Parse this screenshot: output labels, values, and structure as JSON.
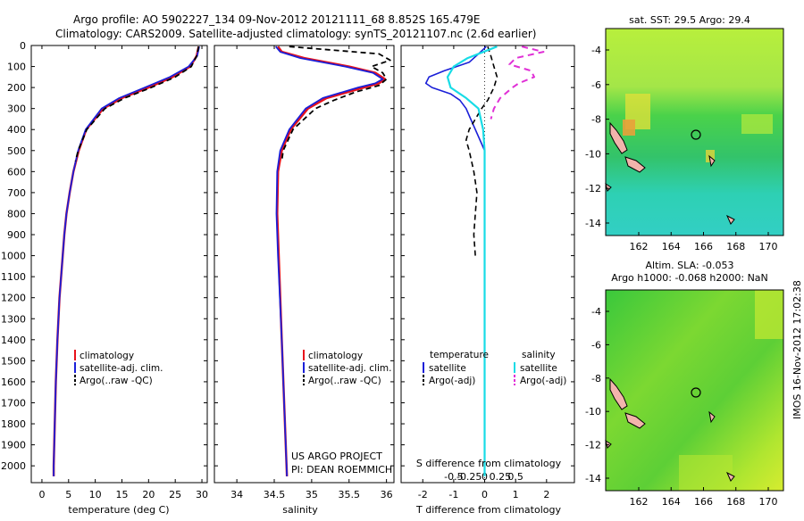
{
  "header": {
    "line1": "Argo profile: AO 5902227_134 09-Nov-2012 20121111_68 8.852S 165.479E",
    "line2": "Climatology: CARS2009. Satellite-adjusted climatology: synTS_20121107.nc (2.6d earlier)"
  },
  "side_stamp": "IMOS 16-Nov-2012 17:02:38",
  "colors": {
    "climatology": "#e8121b",
    "satellite": "#1a1fd8",
    "argo": "#000000",
    "satellite_s": "#17dce6",
    "argo_s": "#e030d6"
  },
  "chart_data": [
    {
      "type": "line",
      "id": "temperature",
      "xlabel": "temperature (deg C)",
      "ylabel": "",
      "xlim": [
        -2,
        31
      ],
      "ylim": [
        2080,
        0
      ],
      "xticks": [
        0,
        5,
        10,
        15,
        20,
        25,
        30
      ],
      "xtick_labels": [
        "0",
        "5",
        "10",
        "15",
        "20",
        "25",
        "30"
      ],
      "yticks": [
        0,
        100,
        200,
        300,
        400,
        500,
        600,
        700,
        800,
        900,
        1000,
        1100,
        1200,
        1300,
        1400,
        1500,
        1600,
        1700,
        1800,
        1900,
        2000
      ],
      "ytick_labels": [
        "0",
        "100",
        "200",
        "300",
        "400",
        "500",
        "600",
        "700",
        "800",
        "900",
        "1000",
        "1100",
        "1200",
        "1300",
        "1400",
        "1500",
        "1600",
        "1700",
        "1800",
        "1900",
        "2000"
      ],
      "legend": {
        "position": "lower-center",
        "entries": [
          "climatology",
          "satellite-adj. clim.",
          "Argo(..raw -QC)"
        ]
      },
      "series": [
        {
          "name": "climatology",
          "color": "#e8121b",
          "width": 2.5,
          "dash": "",
          "depth": [
            5,
            50,
            100,
            150,
            200,
            250,
            300,
            400,
            500,
            600,
            700,
            800,
            900,
            1000,
            1200,
            1400,
            1600,
            1800,
            2000,
            2050
          ],
          "values": [
            29.4,
            29.0,
            27.8,
            24.5,
            20.0,
            15.0,
            11.5,
            8.3,
            6.9,
            5.9,
            5.2,
            4.6,
            4.2,
            3.9,
            3.3,
            2.9,
            2.6,
            2.4,
            2.2,
            2.2
          ]
        },
        {
          "name": "satellite-adj. clim.",
          "color": "#1a1fd8",
          "width": 1.8,
          "dash": "",
          "depth": [
            5,
            50,
            100,
            150,
            200,
            250,
            300,
            400,
            500,
            600,
            700,
            800,
            900,
            1000,
            1200,
            1400,
            1600,
            1800,
            2000,
            2050
          ],
          "values": [
            29.5,
            29.1,
            27.5,
            24.0,
            19.3,
            14.5,
            11.2,
            8.2,
            6.8,
            5.9,
            5.2,
            4.6,
            4.2,
            3.9,
            3.3,
            2.9,
            2.6,
            2.4,
            2.2,
            2.2
          ]
        },
        {
          "name": "Argo(..raw -QC)",
          "color": "#000000",
          "width": 1.8,
          "dash": "6,4",
          "depth": [
            5,
            50,
            100,
            150,
            200,
            250,
            300,
            400,
            500,
            550
          ],
          "values": [
            29.4,
            29.0,
            28.0,
            25.0,
            20.5,
            15.5,
            11.8,
            8.4,
            6.8,
            6.3
          ]
        }
      ]
    },
    {
      "type": "line",
      "id": "salinity",
      "xlabel": "salinity",
      "ylabel": "",
      "xlim": [
        33.7,
        36.1
      ],
      "ylim": [
        2080,
        0
      ],
      "xticks": [
        34,
        34.5,
        35,
        35.5,
        36
      ],
      "xtick_labels": [
        "34",
        "34.5",
        "35",
        "35.5",
        "36"
      ],
      "legend": {
        "position": "lower-center",
        "entries": [
          "climatology",
          "satellite-adj. clim.",
          "Argo(..raw -QC)"
        ]
      },
      "annotation": [
        "US ARGO PROJECT",
        "PI: DEAN ROEMMICH"
      ],
      "series": [
        {
          "name": "climatology",
          "color": "#e8121b",
          "width": 2.5,
          "dash": "",
          "depth": [
            5,
            30,
            60,
            100,
            130,
            160,
            180,
            200,
            250,
            300,
            400,
            500,
            600,
            800,
            1000,
            1400,
            2050
          ],
          "values": [
            34.55,
            34.6,
            34.9,
            35.5,
            35.85,
            35.98,
            35.9,
            35.7,
            35.2,
            34.95,
            34.72,
            34.6,
            34.55,
            34.54,
            34.56,
            34.6,
            34.67
          ]
        },
        {
          "name": "satellite-adj. clim.",
          "color": "#1a1fd8",
          "width": 1.8,
          "dash": "",
          "depth": [
            5,
            30,
            60,
            100,
            130,
            160,
            180,
            200,
            250,
            300,
            400,
            500,
            600,
            800,
            1000,
            1400,
            2050
          ],
          "values": [
            34.52,
            34.58,
            34.85,
            35.45,
            35.82,
            35.95,
            35.85,
            35.62,
            35.15,
            34.92,
            34.7,
            34.58,
            34.54,
            34.53,
            34.55,
            34.6,
            34.67
          ]
        },
        {
          "name": "Argo(..raw -QC)",
          "color": "#000000",
          "width": 1.8,
          "dash": "6,4",
          "depth": [
            5,
            40,
            70,
            100,
            130,
            160,
            190,
            220,
            260,
            300,
            400,
            500,
            550
          ],
          "values": [
            34.7,
            35.9,
            36.05,
            35.8,
            35.95,
            36.0,
            35.9,
            35.6,
            35.3,
            35.05,
            34.75,
            34.62,
            34.6
          ]
        }
      ]
    },
    {
      "type": "line",
      "id": "difference",
      "xlabel": "T difference from climatology",
      "top_label": "S difference from climatology",
      "xlim": [
        -2.7,
        2.9
      ],
      "ylim": [
        2080,
        0
      ],
      "xticks": [
        -2,
        -1,
        0,
        1,
        2
      ],
      "xtick_labels": [
        "-2",
        "-1",
        "0",
        "1",
        "2"
      ],
      "s_ticks": [
        -0.5,
        -0.25,
        0,
        0.25,
        0.5
      ],
      "s_tick_labels": [
        "-0.5",
        "-0.25",
        "0",
        "0.25",
        "0.5"
      ],
      "legend": {
        "position": "center",
        "temperature_title": "temperature",
        "salinity_title": "salinity",
        "entries": [
          "satellite",
          "Argo(-adj)",
          "satellite",
          "Argo(-adj)"
        ]
      },
      "series": [
        {
          "name": "satellite",
          "group": "temperature",
          "color": "#1a1fd8",
          "width": 1.6,
          "dash": "",
          "depth": [
            5,
            40,
            80,
            120,
            150,
            180,
            200,
            230,
            260,
            300,
            350,
            400,
            450,
            500
          ],
          "values": [
            0.05,
            -0.2,
            -0.5,
            -1.3,
            -1.8,
            -1.9,
            -1.7,
            -1.1,
            -0.8,
            -0.6,
            -0.45,
            -0.3,
            -0.15,
            0
          ]
        },
        {
          "name": "Argo(-adj)",
          "group": "temperature",
          "color": "#000000",
          "width": 1.6,
          "dash": "6,4",
          "depth": [
            5,
            50,
            100,
            150,
            200,
            260,
            300,
            350,
            400,
            450,
            500,
            600,
            700,
            800,
            900,
            1000
          ],
          "values": [
            0.1,
            0.2,
            0.3,
            0.4,
            0.3,
            0.1,
            -0.1,
            -0.3,
            -0.5,
            -0.6,
            -0.5,
            -0.35,
            -0.25,
            -0.3,
            -0.35,
            -0.3
          ]
        },
        {
          "name": "satellite",
          "group": "salinity",
          "color": "#17dce6",
          "width": 2.2,
          "dash": "",
          "depth": [
            5,
            60,
            100,
            150,
            200,
            250,
            300,
            400,
            500,
            800,
            1200,
            2050
          ],
          "values": [
            0.4,
            -0.55,
            -1.0,
            -1.2,
            -1.1,
            -0.6,
            -0.2,
            -0.05,
            0,
            0,
            0,
            0
          ]
        },
        {
          "name": "Argo(-adj)",
          "group": "salinity",
          "color": "#e030d6",
          "width": 2,
          "dash": "7,5",
          "depth": [
            5,
            30,
            60,
            90,
            120,
            150,
            180,
            200,
            250,
            300,
            350
          ],
          "values": [
            1.2,
            1.9,
            1.0,
            0.8,
            1.5,
            1.6,
            1.1,
            0.9,
            0.5,
            0.3,
            0.2
          ]
        }
      ]
    }
  ],
  "maps": [
    {
      "id": "sst",
      "title_lines": [
        "sat. SST: 29.5 Argo: 29.4"
      ],
      "yticks": [
        "-4",
        "-6",
        "-8",
        "-10",
        "-12",
        "-14"
      ],
      "xticks": [
        "162",
        "164",
        "166",
        "168",
        "170"
      ]
    },
    {
      "id": "sla",
      "title_lines": [
        "Altim. SLA: -0.053",
        "Argo h1000: -0.068 h2000: NaN"
      ],
      "yticks": [
        "-4",
        "-6",
        "-8",
        "-10",
        "-12",
        "-14"
      ],
      "xticks": [
        "162",
        "164",
        "166",
        "168",
        "170"
      ]
    }
  ]
}
